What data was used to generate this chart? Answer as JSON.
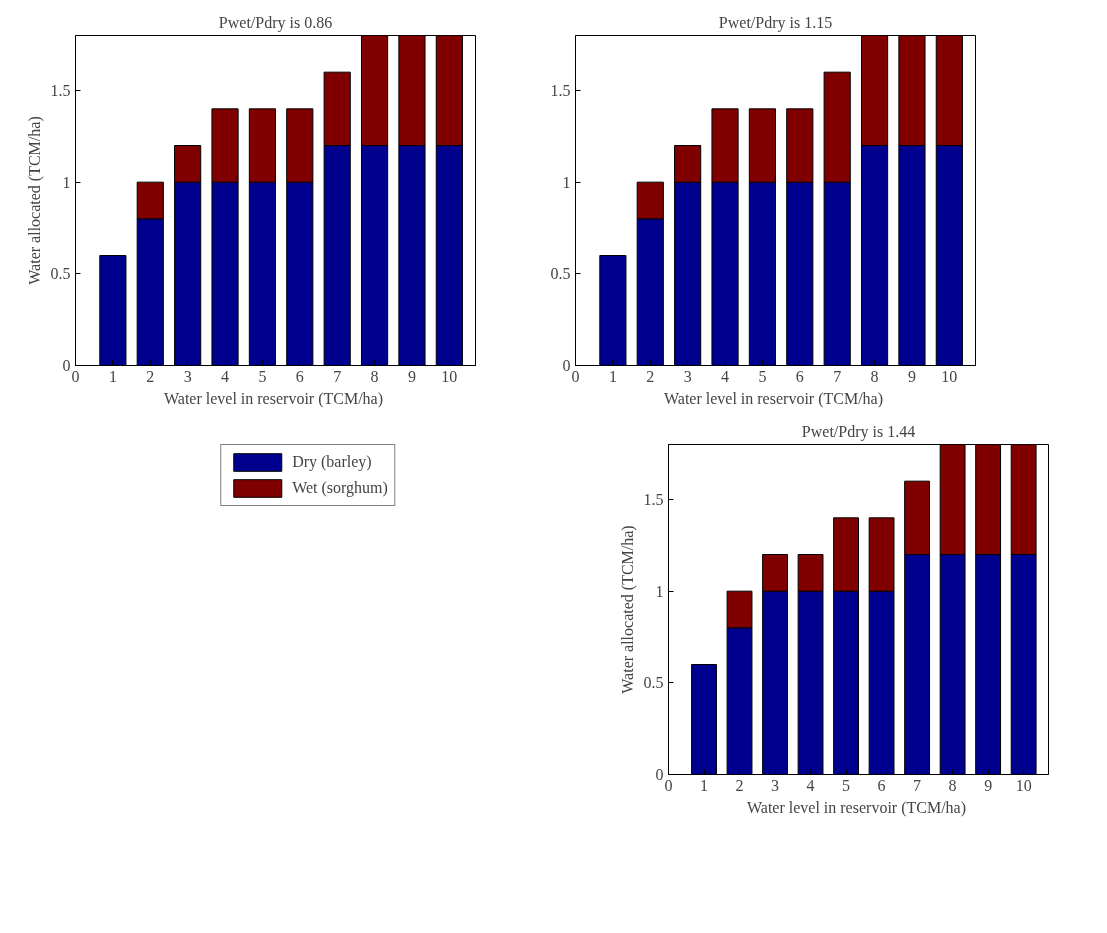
{
  "chart_data": [
    {
      "type": "bar",
      "stacked": true,
      "title": "Pwet/Pdry is 0.86",
      "xlabel": "Water level in reservoir  (TCM/ha)",
      "ylabel": "Water allocated (TCM/ha)",
      "x": [
        1,
        2,
        3,
        4,
        5,
        6,
        7,
        8,
        9,
        10
      ],
      "xlim": [
        0,
        10.7
      ],
      "xticks": [
        0,
        1,
        2,
        3,
        4,
        5,
        6,
        7,
        8,
        9,
        10
      ],
      "ylim": [
        0,
        1.8
      ],
      "yticks": [
        0,
        0.5,
        1,
        1.5
      ],
      "grid": false,
      "legend": false,
      "series": [
        {
          "color": "#00008f",
          "values": [
            0.6,
            0.8,
            1,
            1,
            1,
            1,
            1.2,
            1.2,
            1.2,
            1.2
          ]
        },
        {
          "color": "#800000",
          "values": [
            null,
            0.2,
            0.2,
            0.4,
            0.4,
            0.4,
            0.4,
            0.6,
            0.6,
            0.6
          ]
        }
      ]
    },
    {
      "type": "bar",
      "stacked": true,
      "title": "Pwet/Pdry is 1.15",
      "xlabel": "Water level in reservoir  (TCM/ha)",
      "x": [
        1,
        2,
        3,
        4,
        5,
        6,
        7,
        8,
        9,
        10
      ],
      "xlim": [
        0,
        10.7
      ],
      "xticks": [
        0,
        1,
        2,
        3,
        4,
        5,
        6,
        7,
        8,
        9,
        10
      ],
      "ylim": [
        0,
        1.8
      ],
      "yticks": [
        0,
        0.5,
        1,
        1.5
      ],
      "grid": false,
      "legend": false,
      "series": [
        {
          "color": "#00008f",
          "values": [
            0.6,
            0.8,
            1,
            1,
            1,
            1,
            1,
            1.2,
            1.2,
            1.2
          ]
        },
        {
          "color": "#800000",
          "values": [
            null,
            0.2,
            0.2,
            0.4,
            0.4,
            0.4,
            0.6,
            0.6,
            0.6,
            0.6
          ]
        }
      ]
    },
    {
      "type": "bar",
      "stacked": true,
      "title": "Pwet/Pdry is 1.44",
      "xlabel": "Water level in reservoir  (TCM/ha)",
      "ylabel": "Water allocated (TCM/ha)",
      "x": [
        1,
        2,
        3,
        4,
        5,
        6,
        7,
        8,
        9,
        10
      ],
      "xlim": [
        0,
        10.7
      ],
      "xticks": [
        0,
        1,
        2,
        3,
        4,
        5,
        6,
        7,
        8,
        9,
        10
      ],
      "ylim": [
        0,
        1.8
      ],
      "yticks": [
        0,
        0.5,
        1,
        1.5
      ],
      "grid": false,
      "legend": "left",
      "series": [
        {
          "name": "Dry (barley)",
          "color": "#00008f",
          "values": [
            0.6,
            0.8,
            1,
            1,
            1,
            1,
            1.2,
            1.2,
            1.2,
            1.2
          ]
        },
        {
          "name": "Wet (sorghum)",
          "color": "#800000",
          "values": [
            null,
            0.2,
            0.2,
            0.2,
            0.4,
            0.4,
            0.4,
            0.6,
            0.6,
            0.6
          ]
        }
      ]
    }
  ]
}
